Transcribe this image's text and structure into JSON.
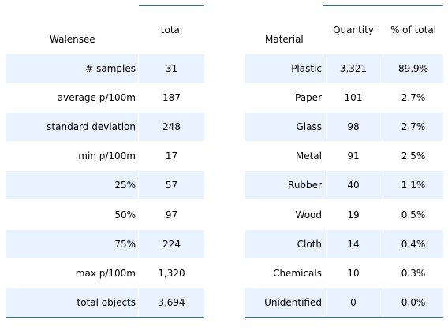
{
  "colors": {
    "header_line": "#1f77b4",
    "row_shade": "#e8f3ff"
  },
  "chart_data": [
    {
      "type": "table",
      "columns": [
        "Walensee",
        "total"
      ],
      "rows": [
        [
          "# samples",
          "31"
        ],
        [
          "average p/100m",
          "187"
        ],
        [
          "standard deviation",
          "248"
        ],
        [
          "min p/100m",
          "17"
        ],
        [
          "25%",
          "57"
        ],
        [
          "50%",
          "97"
        ],
        [
          "75%",
          "224"
        ],
        [
          "max p/100m",
          "1,320"
        ],
        [
          "total objects",
          "3,694"
        ]
      ]
    },
    {
      "type": "table",
      "columns": [
        "Material",
        "Quantity",
        "% of total"
      ],
      "rows": [
        [
          "Plastic",
          "3,321",
          "89.9%"
        ],
        [
          "Paper",
          "101",
          "2.7%"
        ],
        [
          "Glass",
          "98",
          "2.7%"
        ],
        [
          "Metal",
          "91",
          "2.5%"
        ],
        [
          "Rubber",
          "40",
          "1.1%"
        ],
        [
          "Wood",
          "19",
          "0.5%"
        ],
        [
          "Cloth",
          "14",
          "0.4%"
        ],
        [
          "Chemicals",
          "10",
          "0.3%"
        ],
        [
          "Unidentified",
          "0",
          "0.0%"
        ]
      ]
    }
  ]
}
